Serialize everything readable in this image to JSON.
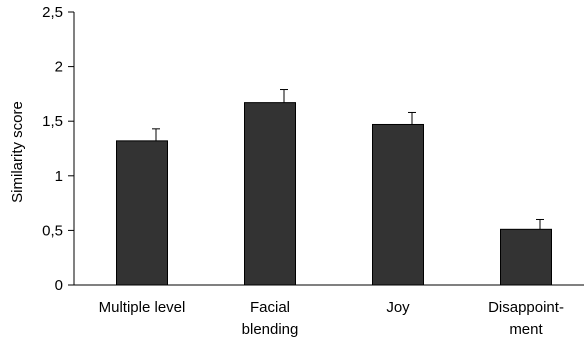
{
  "chart_data": {
    "type": "bar",
    "categories": [
      [
        "Multiple level"
      ],
      [
        "Facial",
        "blending"
      ],
      [
        "Joy"
      ],
      [
        "Disappoint-",
        "ment"
      ]
    ],
    "values": [
      1.32,
      1.67,
      1.47,
      0.51
    ],
    "error_bars": [
      0.11,
      0.12,
      0.11,
      0.09
    ],
    "ylabel": "Similarity score",
    "xlabel": "",
    "title": "",
    "ylim": [
      0,
      2.5
    ],
    "yticks": [
      {
        "value": 0,
        "label": "0"
      },
      {
        "value": 0.5,
        "label": "0,5"
      },
      {
        "value": 1,
        "label": "1"
      },
      {
        "value": 1.5,
        "label": "1,5"
      },
      {
        "value": 2,
        "label": "2"
      },
      {
        "value": 2.5,
        "label": "2,5"
      }
    ],
    "grid": false,
    "bar_color": "#333333"
  }
}
